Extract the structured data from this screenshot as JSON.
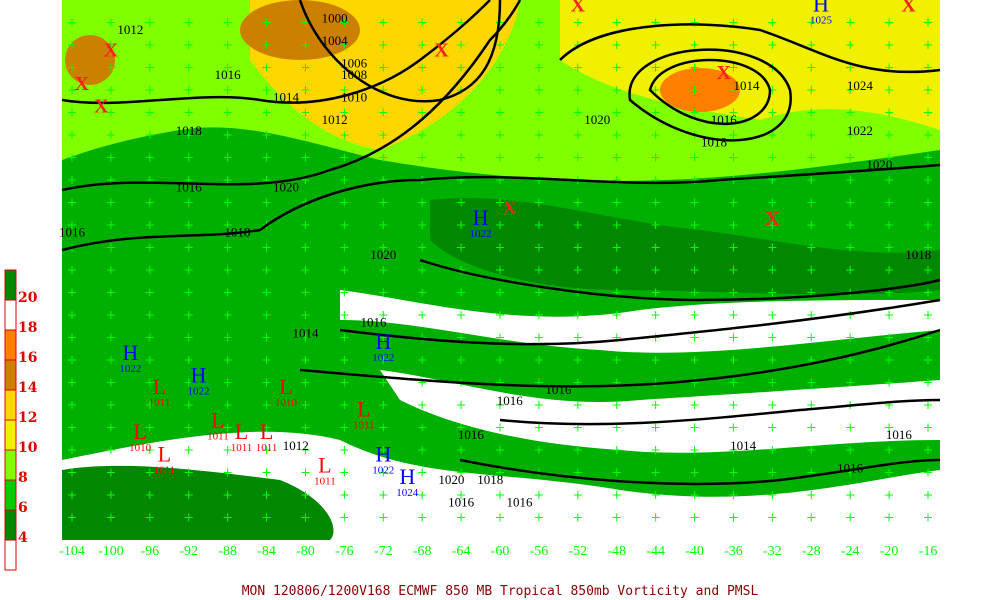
{
  "caption": "MON 120806/1200V168  ECMWF  850 MB Tropical 850mb Vorticity and PMSL",
  "colorbar": {
    "labels": [
      "20",
      "18",
      "16",
      "14",
      "12",
      "10",
      "8",
      "6",
      "4"
    ],
    "colors": [
      "#008800",
      "#ffffff",
      "#ff8000",
      "#cc8000",
      "#ffd700",
      "#f0f000",
      "#80ff00",
      "#00cc00",
      "#008800",
      "#ffffff"
    ]
  },
  "longitude_labels": [
    "-104",
    "-100",
    "-96",
    "-92",
    "-88",
    "-84",
    "-80",
    "-76",
    "-72",
    "-68",
    "-64",
    "-60",
    "-56",
    "-52",
    "-48",
    "-44",
    "-40",
    "-36",
    "-32",
    "-28",
    "-24",
    "-20",
    "-16"
  ],
  "colors": {
    "isobar": "#000000",
    "vorticity_contour": "#ff00ff",
    "grid": "#00ff00",
    "high": "#0000ff",
    "low": "#ff0000"
  },
  "isobar_labels": [
    {
      "t": "1012",
      "lon": -98,
      "lat": 49
    },
    {
      "t": "1016",
      "lon": -88,
      "lat": 45
    },
    {
      "t": "1018",
      "lon": -92,
      "lat": 40
    },
    {
      "t": "1016",
      "lon": -92,
      "lat": 35
    },
    {
      "t": "1016",
      "lon": -104,
      "lat": 31
    },
    {
      "t": "1018",
      "lon": -87,
      "lat": 31
    },
    {
      "t": "1020",
      "lon": -82,
      "lat": 35
    },
    {
      "t": "1014",
      "lon": -82,
      "lat": 43
    },
    {
      "t": "1010",
      "lon": -75,
      "lat": 43
    },
    {
      "t": "1008",
      "lon": -75,
      "lat": 45
    },
    {
      "t": "1006",
      "lon": -75,
      "lat": 46
    },
    {
      "t": "1004",
      "lon": -77,
      "lat": 48
    },
    {
      "t": "1000",
      "lon": -77,
      "lat": 50
    },
    {
      "t": "1012",
      "lon": -77,
      "lat": 41
    },
    {
      "t": "1020",
      "lon": -72,
      "lat": 29
    },
    {
      "t": "1020",
      "lon": -50,
      "lat": 41
    },
    {
      "t": "1014",
      "lon": -37,
      "lat": 44
    },
    {
      "t": "1016",
      "lon": -37,
      "lat": 41
    },
    {
      "t": "1018",
      "lon": -38,
      "lat": 39
    },
    {
      "t": "1024",
      "lon": -23,
      "lat": 44
    },
    {
      "t": "1022",
      "lon": -23,
      "lat": 40
    },
    {
      "t": "1020",
      "lon": -21,
      "lat": 37
    },
    {
      "t": "1018",
      "lon": -17,
      "lat": 29
    },
    {
      "t": "1016",
      "lon": -73,
      "lat": 23
    },
    {
      "t": "1014",
      "lon": -80,
      "lat": 22
    },
    {
      "t": "1016",
      "lon": -54,
      "lat": 17
    },
    {
      "t": "1016",
      "lon": -59,
      "lat": 16
    },
    {
      "t": "1014",
      "lon": -35,
      "lat": 12
    },
    {
      "t": "1016",
      "lon": -19,
      "lat": 13
    },
    {
      "t": "1016",
      "lon": -24,
      "lat": 10
    },
    {
      "t": "1016",
      "lon": -63,
      "lat": 13
    },
    {
      "t": "1020",
      "lon": -65,
      "lat": 9
    },
    {
      "t": "1018",
      "lon": -61,
      "lat": 9
    },
    {
      "t": "1016",
      "lon": -64,
      "lat": 7
    },
    {
      "t": "1016",
      "lon": -58,
      "lat": 7
    },
    {
      "t": "1012",
      "lon": -81,
      "lat": 12
    }
  ],
  "highs": [
    {
      "t": "H",
      "p": "1025",
      "lon": -27,
      "lat": 51
    },
    {
      "t": "H",
      "p": "1022",
      "lon": -62,
      "lat": 32
    },
    {
      "t": "H",
      "p": "1022",
      "lon": -72,
      "lat": 21
    },
    {
      "t": "H",
      "p": "1022",
      "lon": -98,
      "lat": 20
    },
    {
      "t": "H",
      "p": "1022",
      "lon": -91,
      "lat": 18
    },
    {
      "t": "H",
      "p": "1022",
      "lon": -72,
      "lat": 11
    },
    {
      "t": "H",
      "p": "1024",
      "lon": -72,
      "lat": 9
    }
  ],
  "lows": [
    {
      "t": "L",
      "p": "1011",
      "lon": -95,
      "lat": 17
    },
    {
      "t": "L",
      "p": "1010",
      "lon": -82,
      "lat": 17
    },
    {
      "t": "L",
      "p": "1011",
      "lon": -89,
      "lat": 14
    },
    {
      "t": "L",
      "p": "1010",
      "lon": -97,
      "lat": 13
    },
    {
      "t": "L",
      "p": "1011",
      "lon": -84,
      "lat": 13
    },
    {
      "t": "L",
      "p": "1011",
      "lon": -95,
      "lat": 11
    },
    {
      "t": "L",
      "p": "1011",
      "lon": -74,
      "lat": 15
    },
    {
      "t": "L",
      "p": "1011",
      "lon": -78,
      "lat": 10
    },
    {
      "t": "L",
      "p": "1011",
      "lon": -87,
      "lat": 13
    }
  ],
  "vorticity_maxima": [
    {
      "lon": -52,
      "lat": 51
    },
    {
      "lon": -18,
      "lat": 51
    },
    {
      "lon": -37,
      "lat": 45
    },
    {
      "lon": -100,
      "lat": 47
    },
    {
      "lon": -103,
      "lat": 44
    },
    {
      "lon": -66,
      "lat": 47
    },
    {
      "lon": -101,
      "lat": 42
    },
    {
      "lon": -59,
      "lat": 33
    },
    {
      "lon": -32,
      "lat": 32
    }
  ]
}
